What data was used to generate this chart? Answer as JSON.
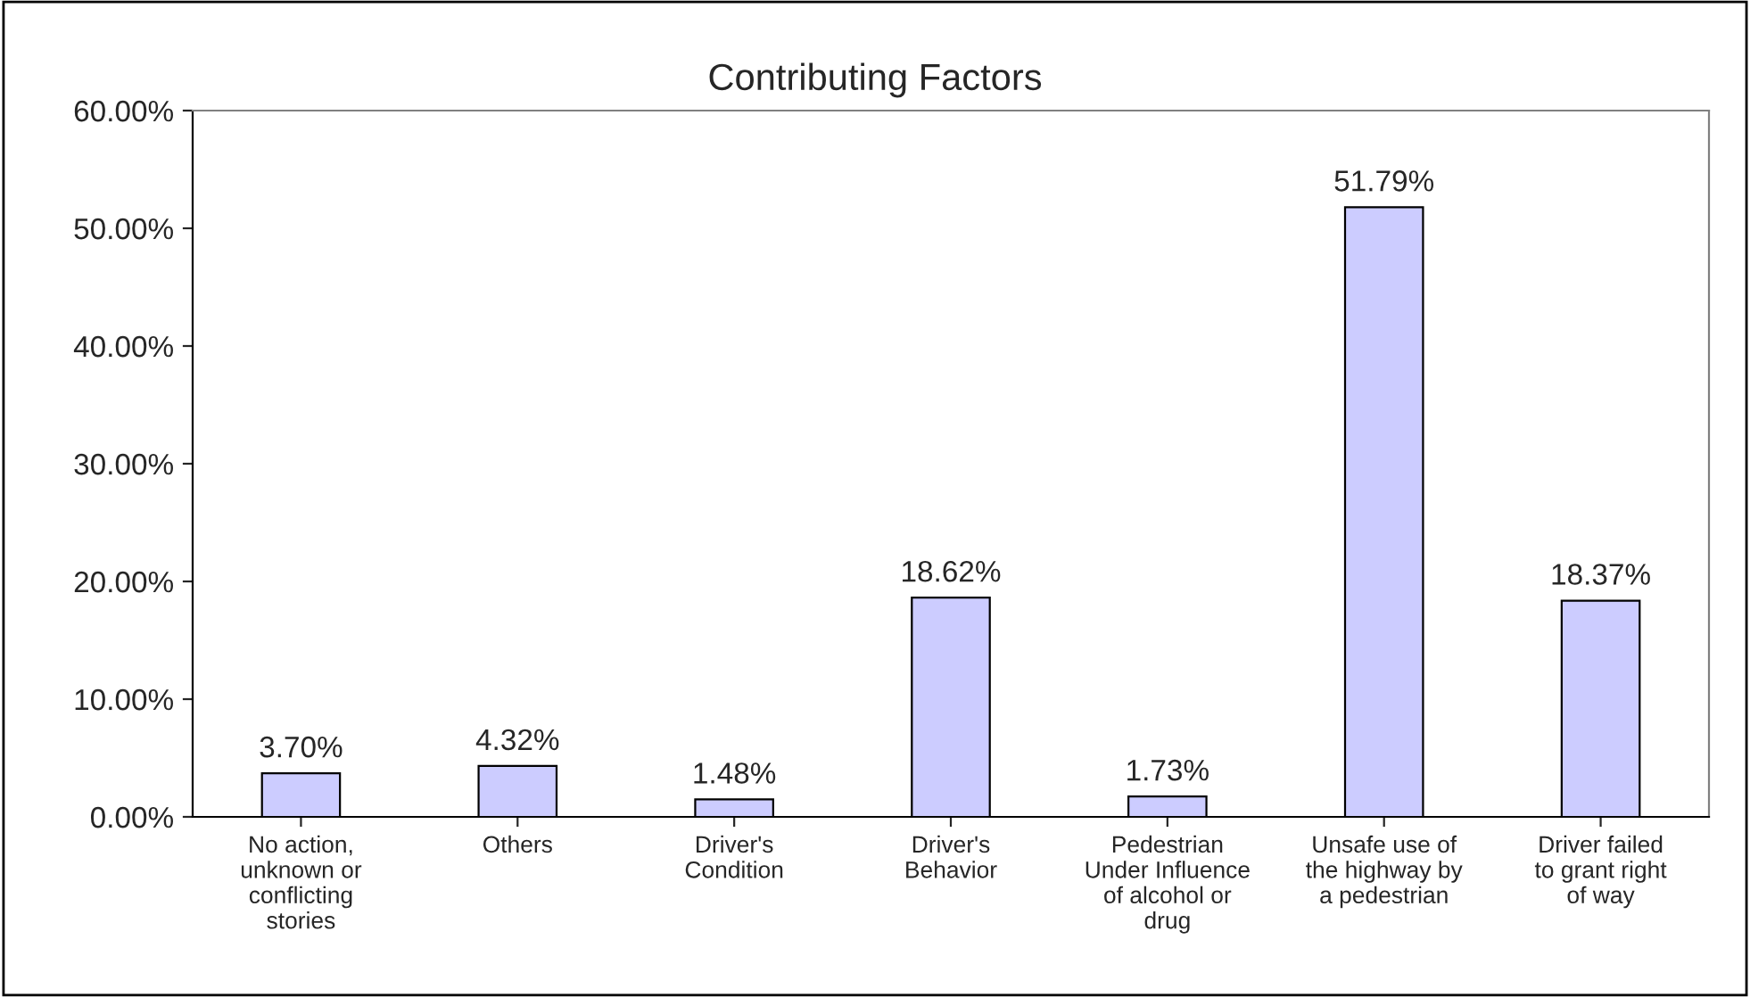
{
  "chart_data": {
    "type": "bar",
    "title": "Contributing Factors",
    "categories": [
      "No action, unknown or conflicting stories",
      "Others",
      "Driver's Condition",
      "Driver's Behavior",
      "Pedestrian Under Influence of alcohol or drug",
      "Unsafe use of the highway by a pedestrian",
      "Driver failed to grant right of way"
    ],
    "values": [
      3.7,
      4.32,
      1.48,
      18.62,
      1.73,
      51.79,
      18.37
    ],
    "value_labels": [
      "3.70%",
      "4.32%",
      "1.48%",
      "18.62%",
      "1.73%",
      "51.79%",
      "18.37%"
    ],
    "color": "#ccccff",
    "ylim": [
      0,
      60
    ],
    "yticks": [
      {
        "value": 0,
        "label": "0.00%"
      },
      {
        "value": 10,
        "label": "10.00%"
      },
      {
        "value": 20,
        "label": "20.00%"
      },
      {
        "value": 30,
        "label": "30.00%"
      },
      {
        "value": 40,
        "label": "40.00%"
      },
      {
        "value": 50,
        "label": "50.00%"
      },
      {
        "value": 60,
        "label": "60.00%"
      }
    ],
    "grid": false,
    "legend": false
  }
}
